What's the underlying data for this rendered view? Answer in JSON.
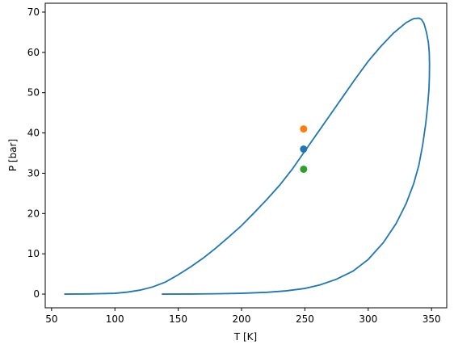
{
  "chart_data": {
    "type": "line",
    "xlabel": "T [K]",
    "ylabel": "P [bar]",
    "xlim": [
      45,
      362
    ],
    "ylim": [
      -3.4,
      72.2
    ],
    "xticks": [
      50,
      100,
      150,
      200,
      250,
      300,
      350
    ],
    "yticks": [
      0,
      10,
      20,
      30,
      40,
      50,
      60,
      70
    ],
    "grid": false,
    "series": [
      {
        "color": "#1f77b4",
        "x": [
          60,
          80,
          100,
          110,
          120,
          130,
          140,
          150,
          160,
          170,
          180,
          190,
          200,
          210,
          220,
          230,
          240,
          250,
          260,
          270,
          280,
          290,
          300,
          310,
          320,
          330,
          336,
          340,
          342,
          344,
          346,
          347.5,
          348.2,
          348.4,
          348.3,
          348.0,
          347.0,
          345.5,
          343.0,
          340.0,
          336.0,
          330.0,
          322.0,
          312.0,
          300.0,
          288.0,
          275.0,
          262.0,
          250.0,
          235.0,
          220.0,
          200.0,
          180.0,
          160.0,
          137.0
        ],
        "y": [
          0.0,
          0.05,
          0.2,
          0.5,
          1.0,
          1.8,
          3.0,
          4.8,
          6.8,
          9.0,
          11.5,
          14.2,
          17.0,
          20.2,
          23.5,
          27.0,
          31.0,
          35.5,
          40.0,
          44.5,
          49.0,
          53.5,
          57.8,
          61.5,
          64.8,
          67.4,
          68.4,
          68.5,
          68.2,
          67.2,
          65.0,
          62.5,
          60.0,
          57.0,
          54.0,
          51.0,
          47.0,
          42.5,
          37.0,
          32.0,
          27.5,
          22.5,
          17.5,
          12.8,
          8.6,
          5.7,
          3.7,
          2.3,
          1.4,
          0.8,
          0.45,
          0.2,
          0.08,
          0.02,
          0.0
        ]
      }
    ],
    "points": [
      {
        "x": 249,
        "y": 41,
        "color": "#ff7f0e"
      },
      {
        "x": 249,
        "y": 36,
        "color": "#1f77b4"
      },
      {
        "x": 249,
        "y": 31,
        "color": "#2ca02c"
      }
    ]
  }
}
